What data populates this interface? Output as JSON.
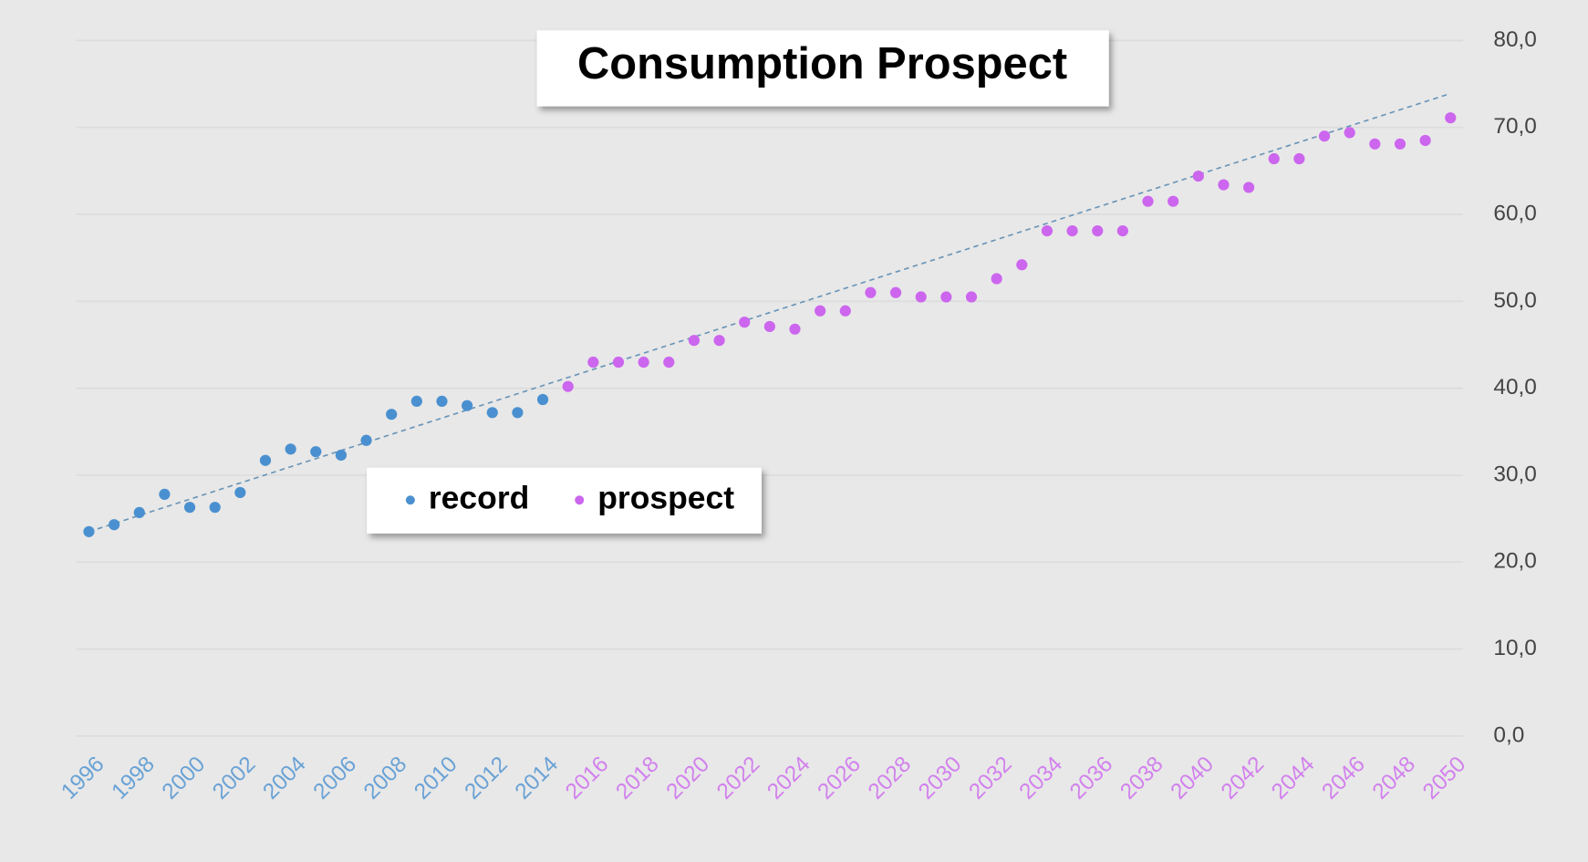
{
  "chart_data": {
    "type": "scatter",
    "title": "Consumption Prospect",
    "xlim": [
      1995.5,
      2050.5
    ],
    "ylim": [
      0,
      80
    ],
    "yticks": [
      {
        "value": 0,
        "label": "0,0"
      },
      {
        "value": 10,
        "label": "10,0"
      },
      {
        "value": 20,
        "label": "20,0"
      },
      {
        "value": 30,
        "label": "30,0"
      },
      {
        "value": 40,
        "label": "40,0"
      },
      {
        "value": 50,
        "label": "50,0"
      },
      {
        "value": 60,
        "label": "60,0"
      },
      {
        "value": 70,
        "label": "70,0"
      },
      {
        "value": 80,
        "label": "80,0"
      }
    ],
    "xticks": [
      1996,
      1998,
      2000,
      2002,
      2004,
      2006,
      2008,
      2010,
      2012,
      2014,
      2016,
      2018,
      2020,
      2022,
      2024,
      2026,
      2028,
      2030,
      2032,
      2034,
      2036,
      2038,
      2040,
      2042,
      2044,
      2046,
      2048,
      2050
    ],
    "grid": true,
    "series": [
      {
        "name": "record",
        "color": "#4a90d0",
        "x": [
          1996,
          1997,
          1998,
          1999,
          2000,
          2001,
          2002,
          2003,
          2004,
          2005,
          2006,
          2007,
          2008,
          2009,
          2010,
          2011,
          2012,
          2013,
          2014
        ],
        "values": [
          23.5,
          24.3,
          25.7,
          27.8,
          26.3,
          26.3,
          28,
          31.7,
          33,
          32.7,
          32.3,
          34,
          37,
          38.5,
          38.5,
          38,
          37.2,
          37.2,
          38.7
        ]
      },
      {
        "name": "prospect",
        "color": "#cc66ee",
        "x": [
          2015,
          2016,
          2017,
          2018,
          2019,
          2020,
          2021,
          2022,
          2023,
          2024,
          2025,
          2026,
          2027,
          2028,
          2029,
          2030,
          2031,
          2032,
          2033,
          2034,
          2035,
          2036,
          2037,
          2038,
          2039,
          2040,
          2041,
          2042,
          2043,
          2044,
          2045,
          2046,
          2047,
          2048,
          2049,
          2050
        ],
        "values": [
          40.2,
          43,
          43,
          43,
          43,
          45.5,
          45.5,
          47.6,
          47.1,
          46.8,
          48.9,
          48.9,
          51,
          51,
          50.5,
          50.5,
          50.5,
          52.6,
          54.2,
          58.1,
          58.1,
          58.1,
          58.1,
          61.5,
          61.5,
          64.4,
          63.4,
          63.1,
          66.4,
          66.4,
          69,
          69.4,
          68.1,
          68.1,
          68.5,
          71.1
        ]
      }
    ],
    "trend": {
      "color": "#6a95b8",
      "x": [
        1996,
        2050
      ],
      "values": [
        23.5,
        73.9
      ]
    }
  }
}
